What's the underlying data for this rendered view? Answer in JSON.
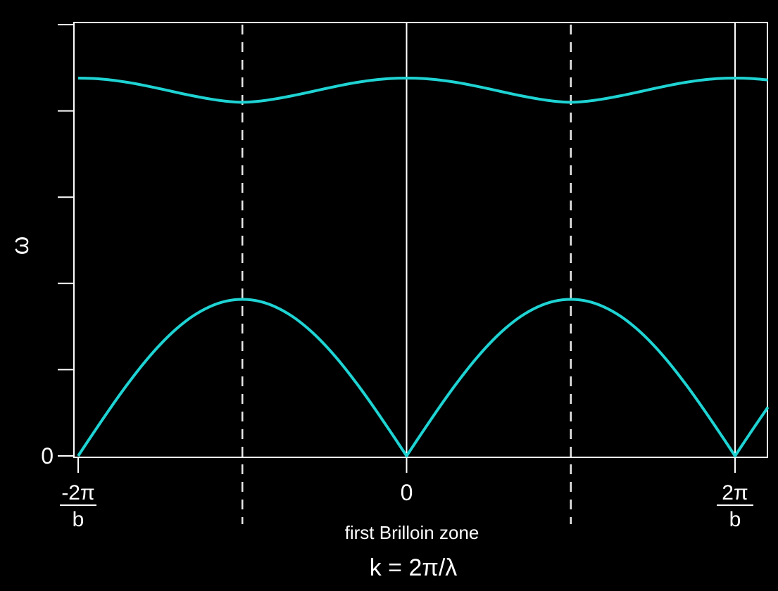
{
  "chart_data": {
    "type": "line",
    "title": "",
    "xlabel": "k = 2π/λ",
    "ylabel": "ω",
    "annotation": "first Brilloin zone",
    "x_unit": "2π/b",
    "xlim": [
      -1.0,
      1.1
    ],
    "ylim": [
      0,
      5.05
    ],
    "grid": false,
    "legend": "none",
    "line_color": "#1fd3d3",
    "axis_color": "#ffffff",
    "background": "#000000",
    "x_ticks": [
      {
        "x": -1.0,
        "num": "-2π",
        "den": "b"
      },
      {
        "x": 0.0,
        "label": "0"
      },
      {
        "x": 1.0,
        "num": "2π",
        "den": "b"
      }
    ],
    "y_ticks": [
      0,
      1,
      2,
      3,
      4,
      5
    ],
    "y_tick_labels": [
      {
        "y": 0,
        "label": "0"
      }
    ],
    "solid_vlines": [
      0.0,
      1.0
    ],
    "dashed_vlines": [
      -0.5,
      0.5
    ],
    "series": [
      {
        "x": [
          -1.0,
          -0.95,
          -0.9,
          -0.85,
          -0.8,
          -0.75,
          -0.7,
          -0.65,
          -0.6,
          -0.55,
          -0.5,
          -0.45,
          -0.4,
          -0.35,
          -0.3,
          -0.25,
          -0.2,
          -0.15,
          -0.1,
          -0.05,
          0.0,
          0.05,
          0.1,
          0.15,
          0.2,
          0.25,
          0.3,
          0.35,
          0.4,
          0.45,
          0.5,
          0.55,
          0.6,
          0.65,
          0.7,
          0.75,
          0.8,
          0.85,
          0.9,
          0.95,
          1.0,
          1.05,
          1.1
        ],
        "y": [
          0.0,
          0.286,
          0.565,
          0.83,
          1.075,
          1.292,
          1.476,
          1.623,
          1.729,
          1.794,
          1.815,
          1.794,
          1.729,
          1.623,
          1.476,
          1.292,
          1.075,
          0.83,
          0.565,
          0.286,
          0.0,
          0.286,
          0.565,
          0.83,
          1.075,
          1.292,
          1.476,
          1.623,
          1.729,
          1.794,
          1.815,
          1.794,
          1.729,
          1.623,
          1.476,
          1.292,
          1.075,
          0.83,
          0.565,
          0.286,
          0.0,
          0.286,
          0.565
        ]
      },
      {
        "x": [
          -1.0,
          -0.95,
          -0.9,
          -0.85,
          -0.8,
          -0.75,
          -0.7,
          -0.65,
          -0.6,
          -0.55,
          -0.5,
          -0.45,
          -0.4,
          -0.35,
          -0.3,
          -0.25,
          -0.2,
          -0.15,
          -0.1,
          -0.05,
          0.0,
          0.05,
          0.1,
          0.15,
          0.2,
          0.25,
          0.3,
          0.35,
          0.4,
          0.45,
          0.5,
          0.55,
          0.6,
          0.65,
          0.7,
          0.75,
          0.8,
          0.85,
          0.9,
          0.95,
          1.0,
          1.05,
          1.1
        ],
        "y": [
          4.38,
          4.375,
          4.358,
          4.331,
          4.296,
          4.256,
          4.214,
          4.174,
          4.139,
          4.112,
          4.1,
          4.112,
          4.139,
          4.174,
          4.214,
          4.256,
          4.296,
          4.331,
          4.358,
          4.375,
          4.38,
          4.375,
          4.358,
          4.331,
          4.296,
          4.256,
          4.214,
          4.174,
          4.139,
          4.112,
          4.1,
          4.112,
          4.139,
          4.174,
          4.214,
          4.256,
          4.296,
          4.331,
          4.358,
          4.375,
          4.38,
          4.375,
          4.358
        ]
      }
    ]
  }
}
